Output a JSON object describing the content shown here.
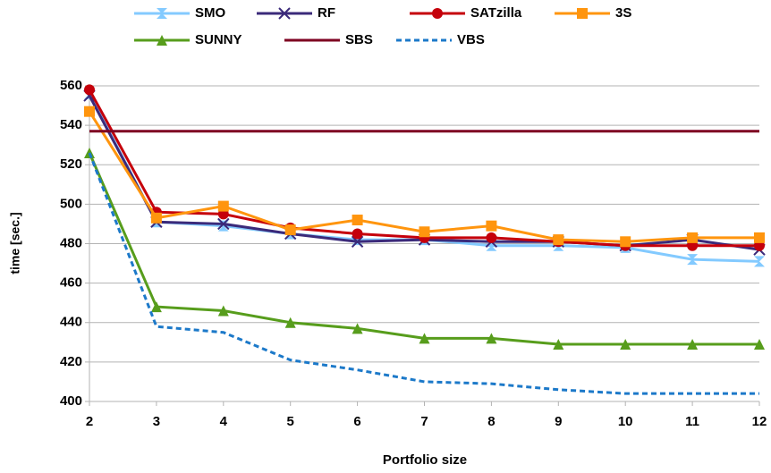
{
  "chart_data": {
    "type": "line",
    "xlabel": "Portfolio size",
    "ylabel": "time [sec.]",
    "x": [
      2,
      3,
      4,
      5,
      6,
      7,
      8,
      9,
      10,
      11,
      12
    ],
    "xlim": [
      2,
      12
    ],
    "xticks": [
      2,
      3,
      4,
      5,
      6,
      7,
      8,
      9,
      10,
      11,
      12
    ],
    "ylim": [
      400,
      560
    ],
    "yticks": [
      400,
      420,
      440,
      460,
      480,
      500,
      520,
      540,
      560
    ],
    "grid": true,
    "legend": "top",
    "series": [
      {
        "name": "SMO",
        "color": "#83caff",
        "marker": "hourglass",
        "values": [
          556,
          491,
          489,
          485,
          482,
          482,
          479,
          479,
          478,
          472,
          471
        ]
      },
      {
        "name": "RF",
        "color": "#3b2a7a",
        "marker": "x",
        "values": [
          555,
          491,
          490,
          485,
          481,
          482,
          481,
          481,
          479,
          482,
          477
        ]
      },
      {
        "name": "SATzilla",
        "color": "#c5000b",
        "marker": "circle",
        "values": [
          558,
          496,
          495,
          488,
          485,
          483,
          483,
          481,
          479,
          479,
          479
        ]
      },
      {
        "name": "3S",
        "color": "#ff950e",
        "marker": "square",
        "values": [
          547,
          493,
          499,
          487,
          492,
          486,
          489,
          482,
          481,
          483,
          483
        ]
      },
      {
        "name": "SUNNY",
        "color": "#579d1c",
        "marker": "triangle",
        "values": [
          526,
          448,
          446,
          440,
          437,
          432,
          432,
          429,
          429,
          429,
          429
        ]
      },
      {
        "name": "SBS",
        "color": "#7e0021",
        "marker": "none",
        "values": [
          537,
          537,
          537,
          537,
          537,
          537,
          537,
          537,
          537,
          537,
          537
        ]
      },
      {
        "name": "VBS",
        "color": "#1c79c9",
        "marker": "none",
        "dash": true,
        "values": [
          526,
          438,
          435,
          421,
          416,
          410,
          409,
          406,
          404,
          404,
          404
        ]
      }
    ]
  }
}
